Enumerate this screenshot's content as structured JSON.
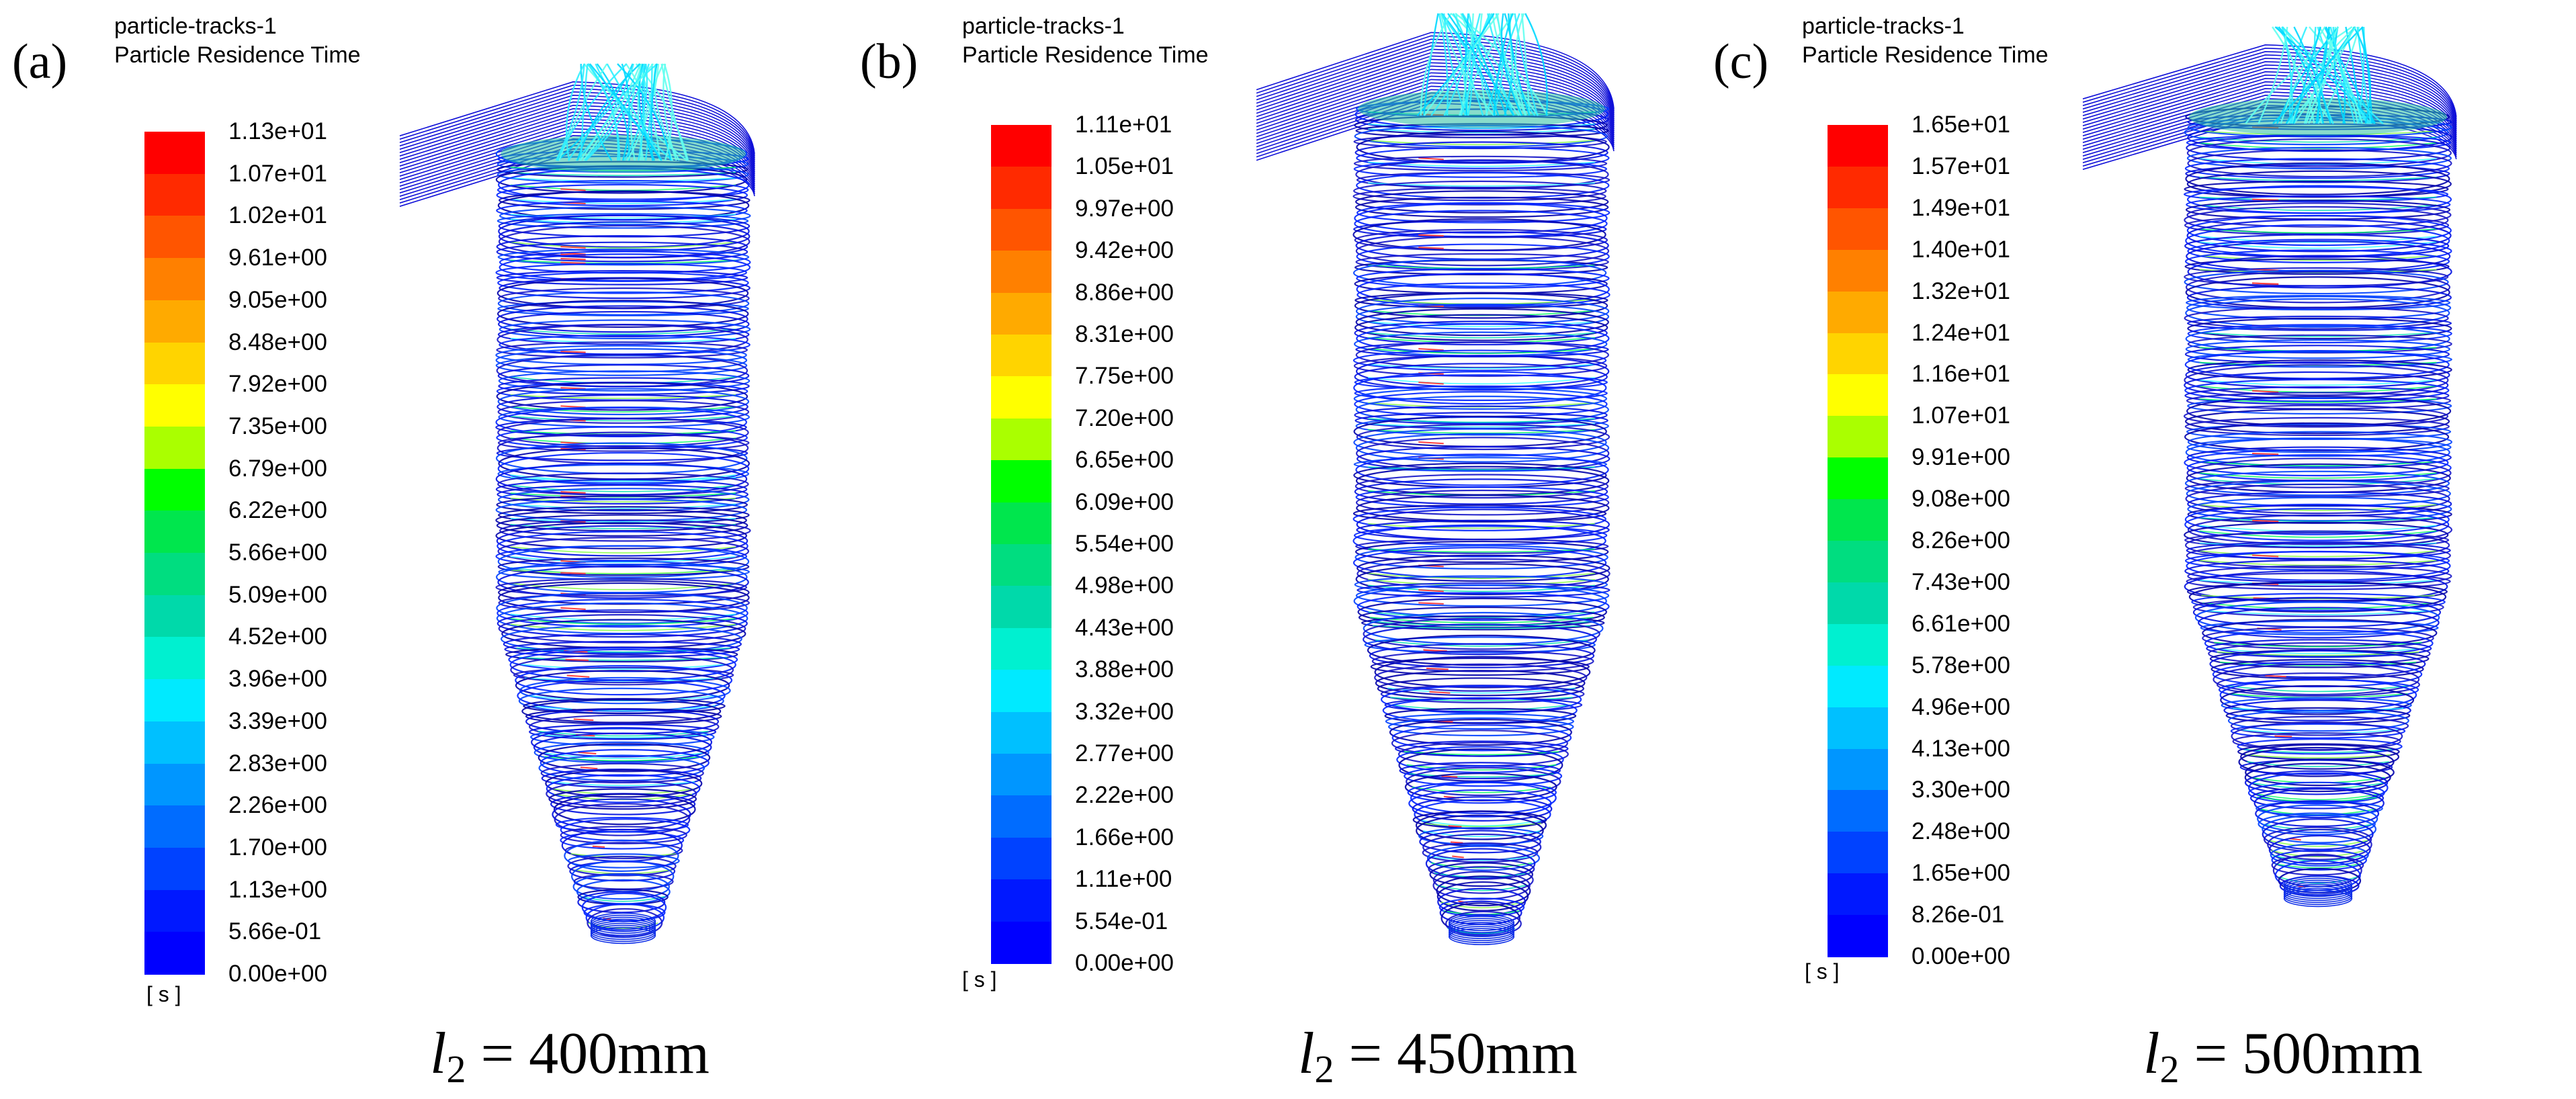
{
  "panels": [
    {
      "letter": "(a)",
      "title_line1": "particle-tracks-1",
      "title_line2": "Particle Residence Time",
      "ticks": [
        "1.13e+01",
        "1.07e+01",
        "1.02e+01",
        "9.61e+00",
        "9.05e+00",
        "8.48e+00",
        "7.92e+00",
        "7.35e+00",
        "6.79e+00",
        "6.22e+00",
        "5.66e+00",
        "5.09e+00",
        "4.52e+00",
        "3.96e+00",
        "3.39e+00",
        "2.83e+00",
        "2.26e+00",
        "1.70e+00",
        "1.13e+00",
        "5.66e-01",
        "0.00e+00"
      ],
      "unit": "[ s ]",
      "caption_var": "l",
      "caption_sub": "2",
      "caption_rest": " = 400mm"
    },
    {
      "letter": "(b)",
      "title_line1": "particle-tracks-1",
      "title_line2": "Particle Residence Time",
      "ticks": [
        "1.11e+01",
        "1.05e+01",
        "9.97e+00",
        "9.42e+00",
        "8.86e+00",
        "8.31e+00",
        "7.75e+00",
        "7.20e+00",
        "6.65e+00",
        "6.09e+00",
        "5.54e+00",
        "4.98e+00",
        "4.43e+00",
        "3.88e+00",
        "3.32e+00",
        "2.77e+00",
        "2.22e+00",
        "1.66e+00",
        "1.11e+00",
        "5.54e-01",
        "0.00e+00"
      ],
      "unit": "[ s ]",
      "caption_var": "l",
      "caption_sub": "2",
      "caption_rest": " = 450mm"
    },
    {
      "letter": "(c)",
      "title_line1": "particle-tracks-1",
      "title_line2": "Particle Residence Time",
      "ticks": [
        "1.65e+01",
        "1.57e+01",
        "1.49e+01",
        "1.40e+01",
        "1.32e+01",
        "1.24e+01",
        "1.16e+01",
        "1.07e+01",
        "9.91e+00",
        "9.08e+00",
        "8.26e+00",
        "7.43e+00",
        "6.61e+00",
        "5.78e+00",
        "4.96e+00",
        "4.13e+00",
        "3.30e+00",
        "2.48e+00",
        "1.65e+00",
        "8.26e-01",
        "0.00e+00"
      ],
      "unit": "[ s ]",
      "caption_var": "l",
      "caption_sub": "2",
      "caption_rest": " = 500mm"
    }
  ],
  "colorbar_colors": [
    "#ff0000",
    "#ff2a00",
    "#ff5500",
    "#ff8000",
    "#ffaa00",
    "#ffd400",
    "#ffff00",
    "#aaff00",
    "#00ff00",
    "#00e64d",
    "#00dd80",
    "#00d9aa",
    "#00f0d0",
    "#00eaff",
    "#00c0ff",
    "#0096ff",
    "#006cff",
    "#0042ff",
    "#0018ff",
    "#0000ff"
  ]
}
